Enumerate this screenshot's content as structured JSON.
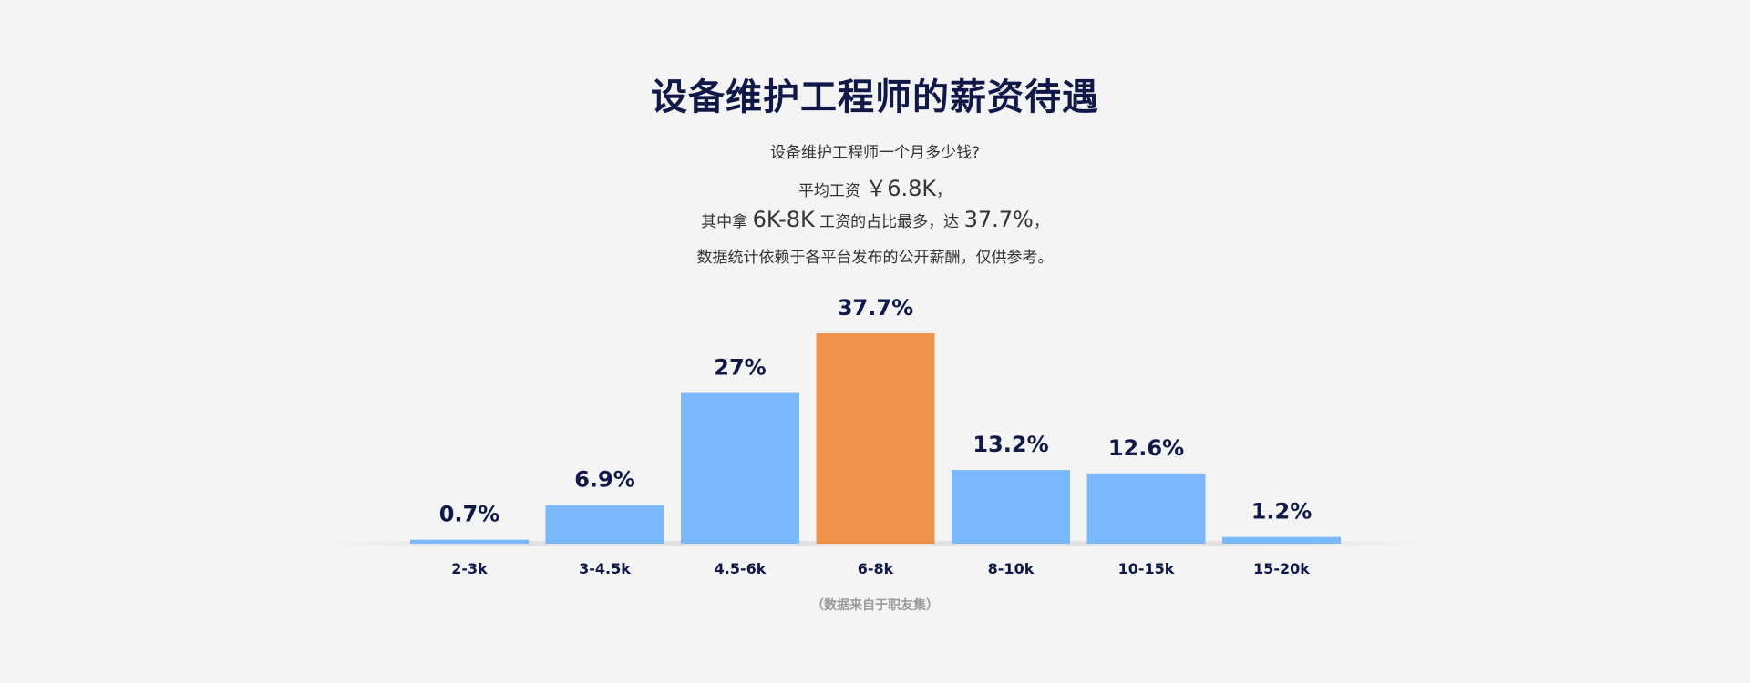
{
  "title": "设备维护工程师的薪资待遇",
  "subtitle": {
    "line1": "设备维护工程师一个月多少钱?",
    "line2_pre": "平均工资",
    "line2_value": "￥6.8K",
    "line2_post": "，",
    "line3_pre": "其中拿",
    "line3_range": "6K-8K",
    "line3_mid": "工资的占比最多，达",
    "line3_pct": "37.7%",
    "line3_post": "，",
    "line4": "数据统计依赖于各平台发布的公开薪酬，仅供参考。"
  },
  "source_note": "（数据来自于职友集）",
  "colors": {
    "bar": "#7ab8fc",
    "highlight": "#f0914a"
  },
  "chart_data": {
    "type": "bar",
    "title": "",
    "xlabel": "",
    "ylabel": "",
    "categories": [
      "2-3k",
      "3-4.5k",
      "4.5-6k",
      "6-8k",
      "8-10k",
      "10-15k",
      "15-20k"
    ],
    "values": [
      0.7,
      6.9,
      27,
      37.7,
      13.2,
      12.6,
      1.2
    ],
    "value_labels": [
      "0.7%",
      "6.9%",
      "27%",
      "37.7%",
      "13.2%",
      "12.6%",
      "1.2%"
    ],
    "highlight_index": 3,
    "ylim": [
      0,
      37.7
    ],
    "grid": false,
    "legend": "none"
  }
}
